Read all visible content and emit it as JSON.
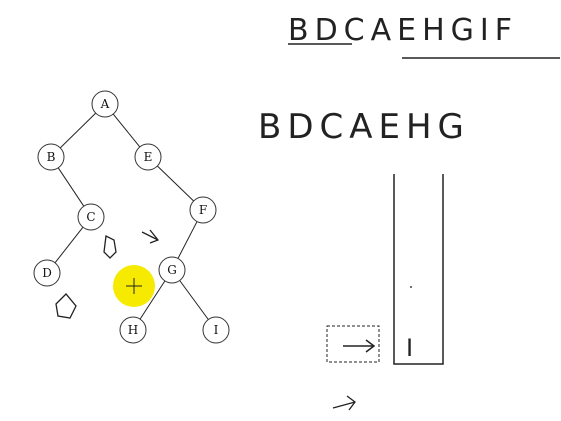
{
  "tree": {
    "nodes": [
      {
        "id": "A",
        "label": "A"
      },
      {
        "id": "B",
        "label": "B"
      },
      {
        "id": "E",
        "label": "E"
      },
      {
        "id": "C",
        "label": "C"
      },
      {
        "id": "F",
        "label": "F"
      },
      {
        "id": "D",
        "label": "D"
      },
      {
        "id": "G",
        "label": "G"
      },
      {
        "id": "H",
        "label": "H"
      },
      {
        "id": "I",
        "label": "I"
      }
    ],
    "edges": [
      [
        "A",
        "B"
      ],
      [
        "A",
        "E"
      ],
      [
        "B",
        "C"
      ],
      [
        "E",
        "F"
      ],
      [
        "C",
        "D"
      ],
      [
        "F",
        "G"
      ],
      [
        "G",
        "H"
      ],
      [
        "G",
        "I"
      ]
    ]
  },
  "handwriting": {
    "top_right_sequence": "BDCAEHGIF",
    "middle_sequence": "BDCAEHG",
    "stack_item": "I"
  },
  "colors": {
    "cursor_highlight": "#f5ea00",
    "ink": "#222222"
  },
  "icons": {
    "cursor": "crosshair-cursor-icon",
    "arrow": "arrow-right-icon"
  }
}
